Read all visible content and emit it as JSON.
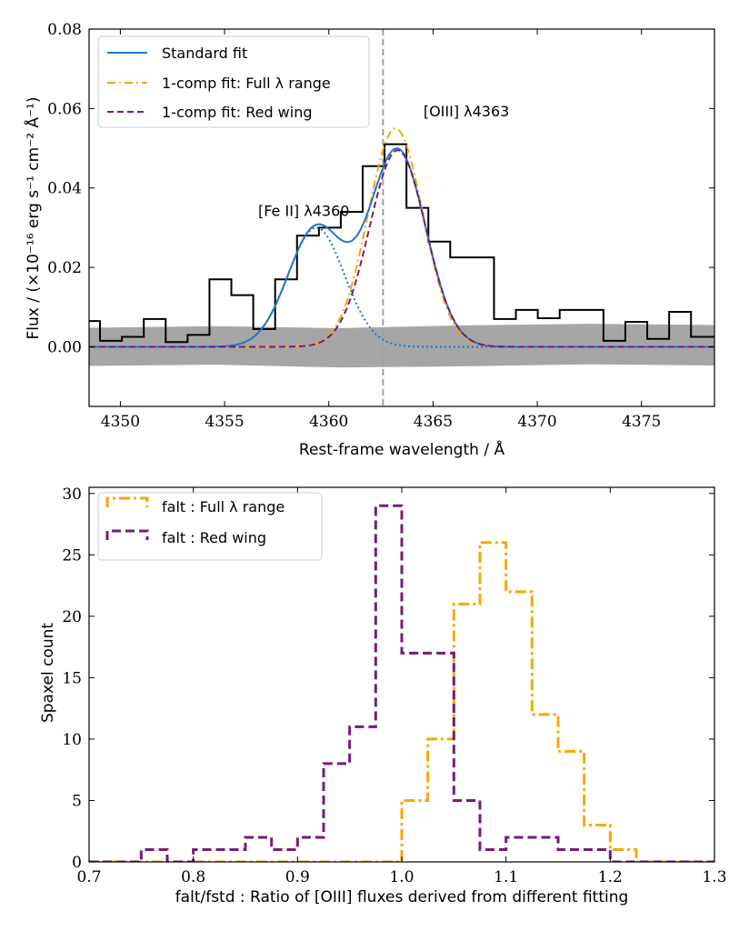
{
  "chart_data": [
    {
      "type": "line",
      "xlabel": "Rest-frame wavelength / Å",
      "ylabel": "Flux / (×10⁻¹⁶ erg s⁻¹ cm⁻² Å⁻¹)",
      "xlim": [
        4348.5,
        4378.5
      ],
      "ylim": [
        -0.015,
        0.08
      ],
      "xticks": [
        4350,
        4355,
        4360,
        4365,
        4370,
        4375
      ],
      "yticks": [
        0.0,
        0.02,
        0.04,
        0.06,
        0.08
      ],
      "xtick_labels": [
        "4350",
        "4355",
        "4360",
        "4365",
        "4370",
        "4375"
      ],
      "ytick_labels": [
        "0.00",
        "0.02",
        "0.04",
        "0.06",
        "0.08"
      ],
      "vline_x": 4362.6,
      "annotations": [
        {
          "text": "[OIII] λ4363",
          "x": 4366.6,
          "y": 0.058
        },
        {
          "text": "[Fe II] λ4360",
          "x": 4358.8,
          "y": 0.033
        }
      ],
      "legend": {
        "position": "upper left",
        "entries": [
          "Standard fit",
          "1-comp fit: Full λ range",
          "1-comp fit: Red wing"
        ]
      },
      "colors": {
        "standard": "#1f77c8",
        "full_range": "#f5a800",
        "red_wing": "#7a1a7a",
        "data": "#000000",
        "error_band": "#a6a6a6",
        "vline": "#a0a0a0"
      },
      "series": [
        {
          "name": "data",
          "style": "steps-mid",
          "x": [
            4348.5,
            4349.55,
            4350.6,
            4351.65,
            4352.7,
            4353.75,
            4354.8,
            4355.85,
            4356.9,
            4357.95,
            4359.0,
            4360.05,
            4361.1,
            4362.15,
            4363.2,
            4364.25,
            4365.3,
            4366.35,
            4367.4,
            4368.45,
            4369.5,
            4370.55,
            4371.6,
            4372.65,
            4373.7,
            4374.75,
            4375.8,
            4376.85,
            4377.9
          ],
          "y": [
            0.0065,
            0.0015,
            0.0025,
            0.007,
            0.0012,
            0.003,
            0.017,
            0.013,
            0.0045,
            0.017,
            0.028,
            0.03,
            0.034,
            0.0455,
            0.051,
            0.035,
            0.0265,
            0.0225,
            0.0225,
            0.007,
            0.0093,
            0.0072,
            0.0093,
            0.0093,
            0.0015,
            0.0063,
            0.002,
            0.0088,
            0.0025
          ]
        },
        {
          "name": "Standard fit",
          "components": [
            {
              "amp": 0.03,
              "mu": 4359.4,
              "sigma": 1.35
            },
            {
              "amp": 0.0495,
              "mu": 4363.3,
              "sigma": 1.35
            }
          ]
        },
        {
          "name": "[Fe II] component",
          "amp": 0.03,
          "mu": 4359.4,
          "sigma": 1.35
        },
        {
          "name": "1-comp fit: Full λ range",
          "amp": 0.055,
          "mu": 4363.2,
          "sigma": 1.32
        },
        {
          "name": "1-comp fit: Red wing",
          "amp": 0.0495,
          "mu": 4363.3,
          "sigma": 1.35
        }
      ],
      "error_band": {
        "upper": [
          0.0048,
          0.0052,
          0.0047,
          0.0054,
          0.0058,
          0.0055
        ],
        "lower": [
          -0.0048,
          -0.0045,
          -0.0052,
          -0.0049,
          -0.0044,
          -0.0047
        ]
      }
    },
    {
      "type": "histogram",
      "xlabel": "falt/fstd : Ratio of [OIII] fluxes derived from different fitting",
      "ylabel": "Spaxel count",
      "xlim": [
        0.7,
        1.3
      ],
      "ylim": [
        0,
        30.5
      ],
      "xticks": [
        0.7,
        0.8,
        0.9,
        1.0,
        1.1,
        1.2,
        1.3
      ],
      "yticks": [
        0,
        5,
        10,
        15,
        20,
        25,
        30
      ],
      "xtick_labels": [
        "0.7",
        "0.8",
        "0.9",
        "1.0",
        "1.1",
        "1.2",
        "1.3"
      ],
      "ytick_labels": [
        "0",
        "5",
        "10",
        "15",
        "20",
        "25",
        "30"
      ],
      "legend": {
        "position": "upper left",
        "entries": [
          "falt : Full λ range",
          "falt : Red wing"
        ]
      },
      "bin_edges": [
        0.7,
        0.725,
        0.75,
        0.775,
        0.8,
        0.825,
        0.85,
        0.875,
        0.9,
        0.925,
        0.95,
        0.975,
        1.0,
        1.025,
        1.05,
        1.075,
        1.1,
        1.125,
        1.15,
        1.175,
        1.2,
        1.225,
        1.25,
        1.275,
        1.3
      ],
      "series": [
        {
          "name": "falt : Full λ range",
          "color": "#f5a800",
          "counts": [
            0,
            0,
            0,
            0,
            0,
            0,
            0,
            0,
            0,
            0,
            0,
            0,
            5,
            10,
            21,
            26,
            22,
            12,
            9,
            3,
            1,
            0,
            0,
            0
          ]
        },
        {
          "name": "falt : Red wing",
          "color": "#7a1a7a",
          "counts": [
            0,
            0,
            1,
            0,
            1,
            1,
            2,
            1,
            2,
            8,
            11,
            29,
            17,
            17,
            5,
            1,
            2,
            2,
            1,
            1,
            0,
            0,
            0,
            0
          ]
        }
      ]
    }
  ]
}
